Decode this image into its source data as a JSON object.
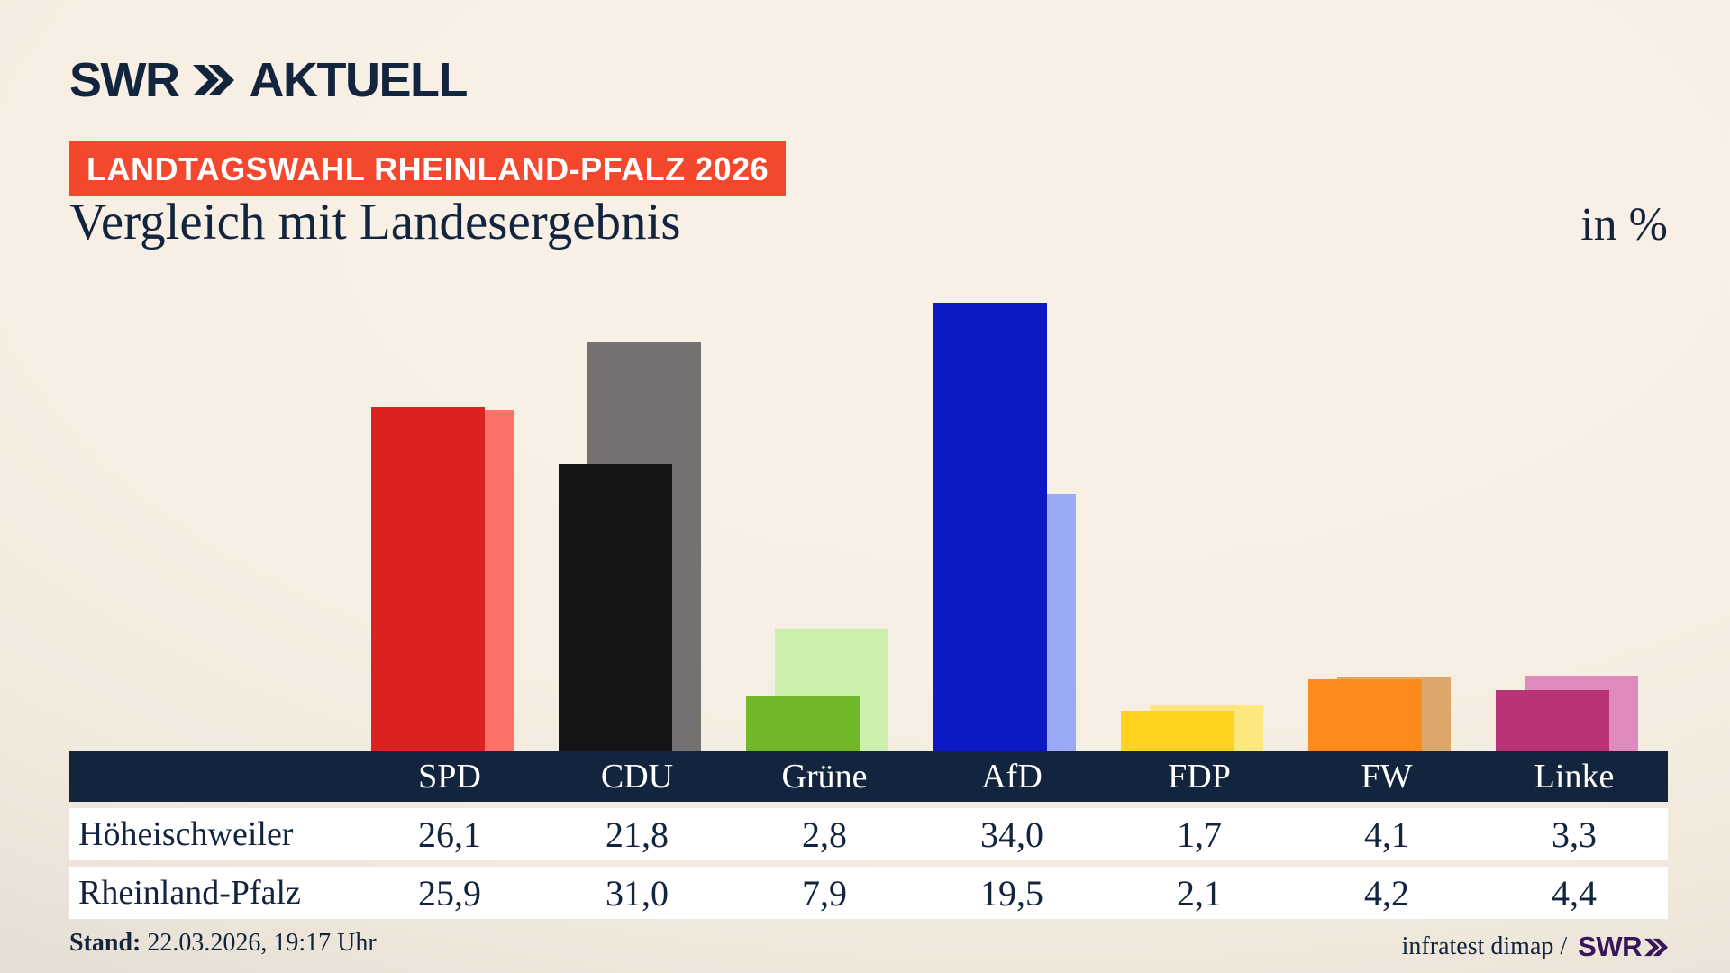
{
  "brand": {
    "logo_text": "SWR",
    "logo_suffix": "AKTUELL"
  },
  "header": {
    "badge": "LANDTAGSWAHL RHEINLAND-PFALZ 2026",
    "title": "Vergleich mit Landesergebnis",
    "unit_label": "in %"
  },
  "chart_data": {
    "type": "bar",
    "unit": "%",
    "categories": [
      "SPD",
      "CDU",
      "Grüne",
      "AfD",
      "FDP",
      "FW",
      "Linke"
    ],
    "series": [
      {
        "name": "Höheischweiler",
        "values": [
          26.1,
          21.8,
          2.8,
          34.0,
          1.7,
          4.1,
          3.3
        ],
        "colors": [
          "#db2221",
          "#161413",
          "#72b72a",
          "#0b1ac4",
          "#ffd21e",
          "#fc8b1e",
          "#b93377"
        ]
      },
      {
        "name": "Rheinland-Pfalz",
        "values": [
          25.9,
          31.0,
          7.9,
          19.5,
          2.1,
          4.2,
          4.4
        ],
        "colors": [
          "#fc7168",
          "#747170",
          "#cdefad",
          "#9baaf6",
          "#ffe77f",
          "#dca76b",
          "#e089bc"
        ]
      }
    ],
    "ylim": [
      0,
      35
    ],
    "axes_visible": false,
    "legend_position": "values shown in table below chart"
  },
  "table": {
    "columns": [
      "SPD",
      "CDU",
      "Grüne",
      "AfD",
      "FDP",
      "FW",
      "Linke"
    ],
    "rows": [
      {
        "label": "Höheischweiler",
        "values": [
          "26,1",
          "21,8",
          "2,8",
          "34,0",
          "1,7",
          "4,1",
          "3,3"
        ]
      },
      {
        "label": "Rheinland-Pfalz",
        "values": [
          "25,9",
          "31,0",
          "7,9",
          "19,5",
          "2,1",
          "4,2",
          "4,4"
        ]
      }
    ]
  },
  "footer": {
    "stand_label": "Stand:",
    "stand_value": " 22.03.2026, 19:17 Uhr",
    "source_text": "infratest dimap /",
    "source_brand": "SWR"
  },
  "colors": {
    "navy": "#13243e",
    "badge_red": "#f4482e",
    "swr_purple": "#371758",
    "table_header_bg": "#13243e",
    "row_bg": "#ffffff",
    "background_beige": "#f7efe3",
    "background_gray": "#c7c3bd"
  }
}
